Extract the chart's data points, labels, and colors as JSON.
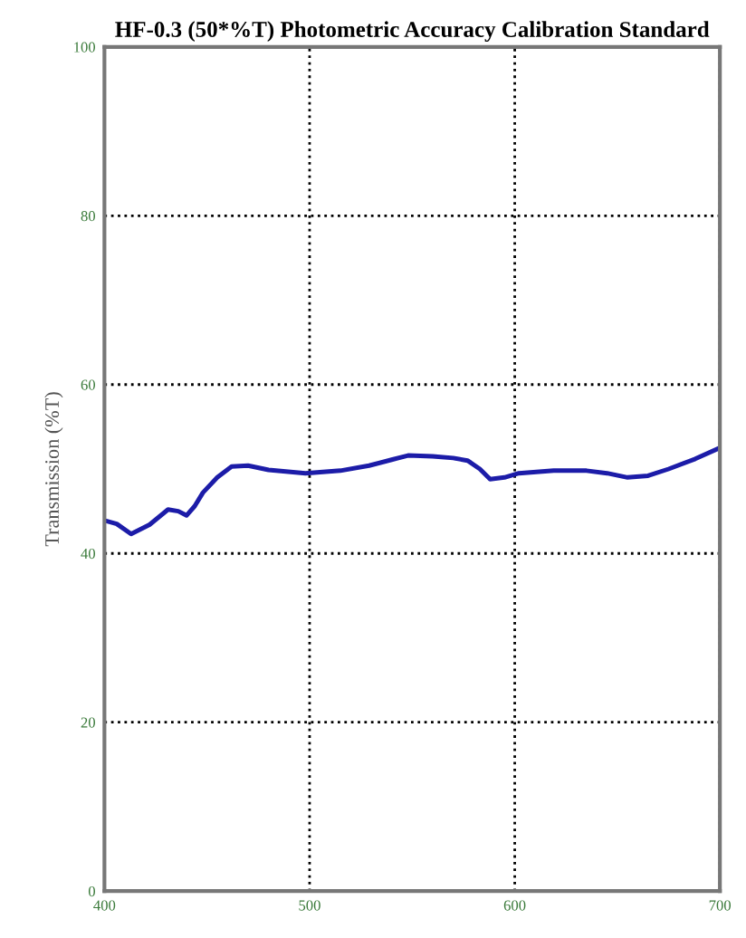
{
  "chart_data": {
    "type": "line",
    "title": "HF-0.3 (50*%T) Photometric Accuracy Calibration Standard",
    "ylabel": "Transmission (%T)",
    "x": [
      400,
      406,
      413,
      422,
      431,
      436,
      440,
      444,
      448,
      455,
      462,
      470,
      480,
      498,
      515,
      529,
      540,
      548,
      560,
      570,
      577,
      583,
      588,
      595,
      602,
      619,
      635,
      645,
      655,
      665,
      675,
      688,
      699
    ],
    "series": [
      {
        "color": "#1c1ca8",
        "values": [
          43.9,
          43.5,
          42.3,
          43.4,
          45.2,
          45.0,
          44.5,
          45.6,
          47.2,
          49.0,
          50.3,
          50.4,
          49.9,
          49.5,
          49.8,
          50.4,
          51.1,
          51.6,
          51.5,
          51.3,
          51.0,
          50.0,
          48.8,
          49.0,
          49.5,
          49.8,
          49.8,
          49.5,
          49.0,
          49.2,
          50.0,
          51.2,
          52.4
        ]
      }
    ],
    "xlim": [
      400,
      700
    ],
    "ylim": [
      0,
      100
    ],
    "xticks": [
      400,
      500,
      600,
      700
    ],
    "yticks": [
      0,
      20,
      40,
      60,
      80,
      100
    ],
    "grid": true,
    "line_style": "solid",
    "marker": "none"
  }
}
